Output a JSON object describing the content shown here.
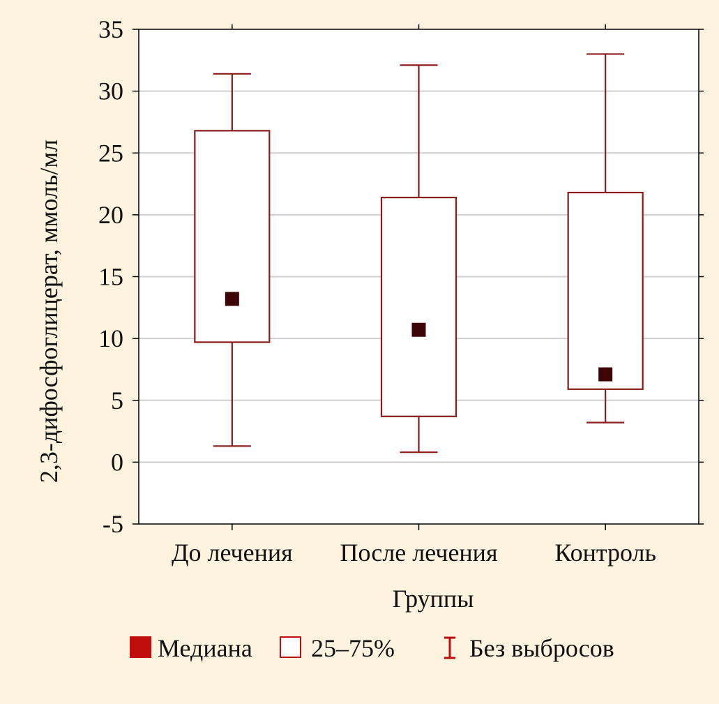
{
  "chart_data": {
    "type": "boxplot",
    "title": "",
    "xlabel": "Группы",
    "ylabel": "2,3-дифосфоглицерат, ммоль/мл",
    "ylim": [
      -5,
      35
    ],
    "yticks": [
      -5,
      0,
      5,
      10,
      15,
      20,
      25,
      30,
      35
    ],
    "grid": true,
    "categories": [
      "До лечения",
      "После лечения",
      "Контроль"
    ],
    "boxes": [
      {
        "category": "До лечения",
        "whisker_min": 1.3,
        "q1": 9.7,
        "median": 13.2,
        "q3": 26.8,
        "whisker_max": 31.4
      },
      {
        "category": "После лечения",
        "whisker_min": 0.8,
        "q1": 3.7,
        "median": 10.7,
        "q3": 21.4,
        "whisker_max": 32.1
      },
      {
        "category": "Контроль",
        "whisker_min": 3.2,
        "q1": 5.9,
        "median": 7.1,
        "q3": 21.8,
        "whisker_max": 33.0
      }
    ],
    "legend": {
      "placement": "bottom",
      "items": [
        {
          "label": "Медиана",
          "kind": "filled-square"
        },
        {
          "label": "25–75%",
          "kind": "open-square"
        },
        {
          "label": "Без выбросов",
          "kind": "whisker"
        }
      ]
    },
    "colors": {
      "background": "#fdf3de",
      "plot_background": "#ffffff",
      "box_stroke": "#8b1a1a",
      "median_fill": "#3d0505",
      "legend_fill": "#c00d0d",
      "grid": "#cfcfcf",
      "axis": "#000000"
    }
  }
}
